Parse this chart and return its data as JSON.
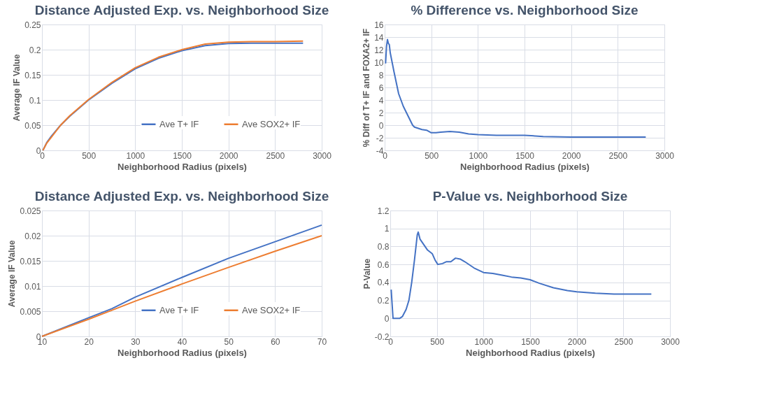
{
  "chart_data": [
    {
      "type": "line",
      "title": "Distance  Adjusted Exp. vs. Neighborhood  Size",
      "xlabel": "Neighborhood Radius (pixels)",
      "ylabel": "Average IF Value",
      "xlim": [
        0,
        3000
      ],
      "xticks": [
        0,
        500,
        1000,
        1500,
        2000,
        2500,
        3000
      ],
      "ylim": [
        0,
        0.25
      ],
      "yticks": [
        0,
        0.05,
        0.1,
        0.15,
        0.2,
        0.25
      ],
      "grid": true,
      "legend": "bottom right",
      "x": [
        10,
        50,
        100,
        200,
        300,
        500,
        750,
        1000,
        1250,
        1500,
        1750,
        2000,
        2250,
        2500,
        2800
      ],
      "series": [
        {
          "name": "Ave T+ IF",
          "color": "#4472c4",
          "values": [
            0,
            0.015,
            0.028,
            0.05,
            0.068,
            0.1,
            0.133,
            0.162,
            0.183,
            0.198,
            0.208,
            0.212,
            0.213,
            0.213,
            0.213
          ]
        },
        {
          "name": "Ave SOX2+ IF",
          "color": "#ed7d31",
          "values": [
            0,
            0.014,
            0.026,
            0.05,
            0.069,
            0.101,
            0.135,
            0.164,
            0.185,
            0.2,
            0.211,
            0.215,
            0.216,
            0.216,
            0.217
          ]
        }
      ]
    },
    {
      "type": "line",
      "title": "% Difference vs. Neighborhood Size",
      "xlabel": "Neighborhood Radius (pixels)",
      "ylabel": "% Diff of T+ IF and FOXA2+ IF",
      "xlim": [
        0,
        3000
      ],
      "xticks": [
        0,
        500,
        1000,
        1500,
        2000,
        2500,
        3000
      ],
      "ylim": [
        -4,
        16
      ],
      "yticks": [
        -4,
        -2,
        0,
        2,
        4,
        6,
        8,
        10,
        12,
        14,
        16
      ],
      "grid": true,
      "x": [
        10,
        20,
        30,
        40,
        50,
        60,
        80,
        100,
        150,
        200,
        250,
        300,
        320,
        400,
        450,
        500,
        550,
        600,
        700,
        800,
        900,
        1000,
        1200,
        1400,
        1500,
        1700,
        2000,
        2500,
        2800
      ],
      "series": [
        {
          "color": "#4472c4",
          "values": [
            9.8,
            12.5,
            13.6,
            13.0,
            12.8,
            11.5,
            10.0,
            8.5,
            5.0,
            3.0,
            1.5,
            0.0,
            -0.3,
            -0.7,
            -0.8,
            -1.2,
            -1.2,
            -1.1,
            -1.0,
            -1.1,
            -1.4,
            -1.5,
            -1.6,
            -1.6,
            -1.6,
            -1.8,
            -1.9,
            -1.9,
            -1.9
          ]
        }
      ]
    },
    {
      "type": "line",
      "title": "Distance  Adjusted Exp. vs. Neighborhood  Size",
      "xlabel": "Neighborhood Radius (pixels)",
      "ylabel": "Average IF Value",
      "xlim": [
        10,
        70
      ],
      "xticks": [
        10,
        20,
        30,
        40,
        50,
        60,
        70
      ],
      "ylim": [
        0,
        0.025
      ],
      "yticks": [
        0,
        0.005,
        0.01,
        0.015,
        0.02,
        0.025
      ],
      "grid": true,
      "legend": "bottom right",
      "x": [
        10,
        20,
        25,
        30,
        40,
        50,
        60,
        70
      ],
      "series": [
        {
          "name": "Ave T+ IF",
          "color": "#4472c4",
          "values": [
            0,
            0.0037,
            0.0055,
            0.0078,
            0.0117,
            0.0155,
            0.0188,
            0.0221
          ]
        },
        {
          "name": "Ave SOX2+ IF",
          "color": "#ed7d31",
          "values": [
            0,
            0.0034,
            0.0052,
            0.007,
            0.0104,
            0.0137,
            0.0169,
            0.02
          ]
        }
      ]
    },
    {
      "type": "line",
      "title": "P-Value vs. Neighborhood Size",
      "xlabel": "Neighborhood Radius (pixels)",
      "ylabel": "P-Value",
      "xlim": [
        0,
        3000
      ],
      "xticks": [
        0,
        500,
        1000,
        1500,
        2000,
        2500,
        3000
      ],
      "ylim": [
        -0.2,
        1.2
      ],
      "yticks": [
        -0.2,
        0,
        0.2,
        0.4,
        0.6,
        0.8,
        1,
        1.2
      ],
      "grid": true,
      "x": [
        10,
        30,
        100,
        130,
        170,
        200,
        230,
        260,
        290,
        300,
        320,
        360,
        400,
        450,
        480,
        510,
        560,
        600,
        650,
        700,
        750,
        800,
        900,
        1000,
        1100,
        1200,
        1300,
        1400,
        1500,
        1600,
        1750,
        1900,
        2000,
        2200,
        2400,
        2800
      ],
      "series": [
        {
          "color": "#4472c4",
          "values": [
            0.32,
            0.0,
            0.0,
            0.02,
            0.1,
            0.2,
            0.4,
            0.65,
            0.93,
            0.96,
            0.88,
            0.82,
            0.76,
            0.72,
            0.65,
            0.6,
            0.61,
            0.63,
            0.63,
            0.67,
            0.66,
            0.63,
            0.56,
            0.51,
            0.5,
            0.48,
            0.46,
            0.45,
            0.43,
            0.39,
            0.34,
            0.31,
            0.295,
            0.28,
            0.27,
            0.27
          ]
        }
      ]
    }
  ]
}
